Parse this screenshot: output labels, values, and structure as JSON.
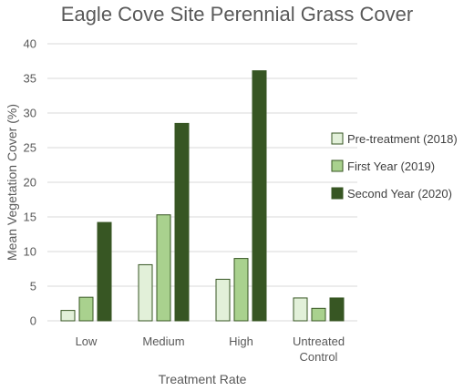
{
  "chart_data": {
    "type": "bar",
    "title": "Eagle Cove Site Perennial Grass Cover",
    "xlabel": "Treatment Rate",
    "ylabel": "Mean Vegetation Cover (%)",
    "ylim": [
      0,
      40
    ],
    "yticks": [
      0,
      5,
      10,
      15,
      20,
      25,
      30,
      35,
      40
    ],
    "grid": true,
    "legend_position": "right",
    "categories": [
      [
        "Low"
      ],
      [
        "Medium"
      ],
      [
        "High"
      ],
      [
        "Untreated",
        "Control"
      ]
    ],
    "series": [
      {
        "name": "Pre-treatment (2018)",
        "color": "#e2f0d9",
        "values": [
          1.5,
          8.1,
          6.0,
          3.3
        ]
      },
      {
        "name": "First Year (2019)",
        "color": "#a9d18e",
        "values": [
          3.4,
          15.3,
          9.0,
          1.8
        ]
      },
      {
        "name": "Second Year (2020)",
        "color": "#375623",
        "values": [
          14.2,
          28.5,
          36.1,
          3.3
        ]
      }
    ]
  }
}
